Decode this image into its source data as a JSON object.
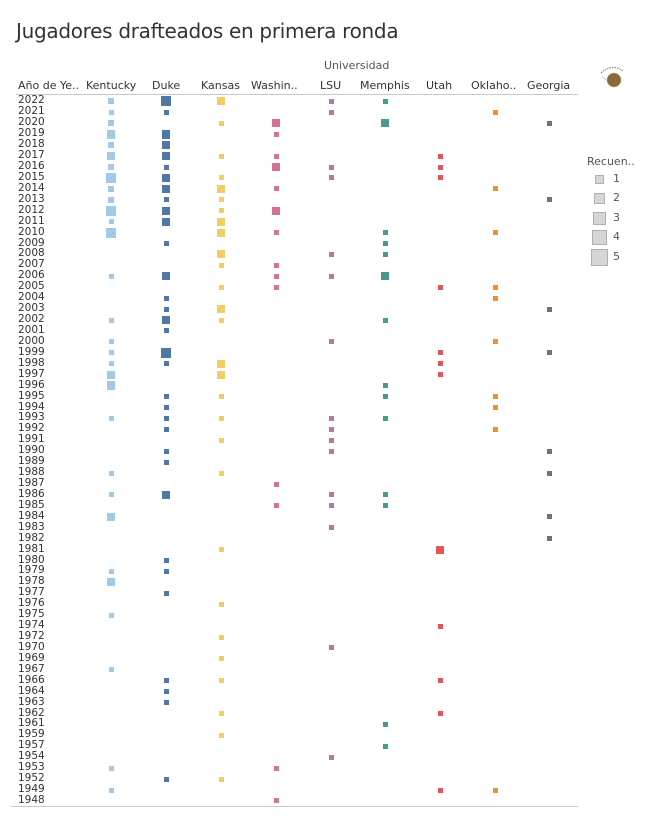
{
  "title": "Jugadores drafteados en primera ronda",
  "group_header": "Universidad",
  "row_header": "Año de Ye..",
  "legend": {
    "title": "Recuen..",
    "items": [
      {
        "label": "1",
        "value": 1
      },
      {
        "label": "2",
        "value": 2
      },
      {
        "label": "3",
        "value": 3
      },
      {
        "label": "4",
        "value": 4
      },
      {
        "label": "5",
        "value": 5
      }
    ]
  },
  "logo": {
    "icon": "basketball-logo-icon"
  },
  "chart_data": {
    "type": "heatmap",
    "title": "Jugadores drafteados en primera ronda",
    "xlabel": "Universidad",
    "ylabel": "Año de Ye..",
    "size_legend": "Recuen..",
    "size_range": [
      1,
      5
    ],
    "legend_position": "right",
    "columns": [
      {
        "name": "Kentucky",
        "label": "Kentucky",
        "color": "#a0cbe8"
      },
      {
        "name": "Duke",
        "label": "Duke",
        "color": "#4e79a7"
      },
      {
        "name": "Kansas",
        "label": "Kansas",
        "color": "#f1ce63"
      },
      {
        "name": "Washington",
        "label": "Washin..",
        "color": "#d37295"
      },
      {
        "name": "LSU",
        "label": "LSU",
        "color": "#b07aa1"
      },
      {
        "name": "Memphis",
        "label": "Memphis",
        "color": "#499894"
      },
      {
        "name": "Utah",
        "label": "Utah",
        "color": "#e15759"
      },
      {
        "name": "Oklahoma",
        "label": "Oklaho..",
        "color": "#f28e2b"
      },
      {
        "name": "Georgia",
        "label": "Georgia",
        "color": "#79706e"
      }
    ],
    "rows": [
      {
        "year": "2022",
        "values": [
          2,
          5,
          3,
          0,
          1,
          1,
          0,
          0,
          0
        ]
      },
      {
        "year": "2021",
        "values": [
          1,
          1,
          0,
          0,
          1,
          0,
          0,
          1,
          0
        ]
      },
      {
        "year": "2020",
        "values": [
          2,
          0,
          1,
          3,
          0,
          3,
          0,
          0,
          1
        ]
      },
      {
        "year": "2019",
        "values": [
          4,
          4,
          0,
          1,
          0,
          0,
          0,
          0,
          0
        ]
      },
      {
        "year": "2018",
        "values": [
          2,
          4,
          0,
          0,
          0,
          0,
          0,
          0,
          0
        ]
      },
      {
        "year": "2017",
        "values": [
          4,
          4,
          1,
          1,
          0,
          0,
          1,
          0,
          0
        ]
      },
      {
        "year": "2016",
        "values": [
          2,
          1,
          0,
          3,
          1,
          0,
          1,
          0,
          0
        ]
      },
      {
        "year": "2015",
        "values": [
          5,
          4,
          1,
          0,
          1,
          0,
          1,
          0,
          0
        ]
      },
      {
        "year": "2014",
        "values": [
          2,
          3,
          3,
          1,
          0,
          0,
          0,
          1,
          0
        ]
      },
      {
        "year": "2013",
        "values": [
          2,
          1,
          1,
          0,
          0,
          0,
          0,
          0,
          1
        ]
      },
      {
        "year": "2012",
        "values": [
          5,
          3,
          1,
          3,
          0,
          0,
          0,
          0,
          0
        ]
      },
      {
        "year": "2011",
        "values": [
          1,
          3,
          3,
          0,
          0,
          0,
          0,
          0,
          0
        ]
      },
      {
        "year": "2010",
        "values": [
          5,
          0,
          3,
          1,
          0,
          1,
          0,
          1,
          0
        ]
      },
      {
        "year": "2009",
        "values": [
          0,
          1,
          0,
          0,
          0,
          1,
          0,
          0,
          0
        ]
      },
      {
        "year": "2008",
        "values": [
          0,
          0,
          3,
          0,
          1,
          1,
          0,
          0,
          0
        ]
      },
      {
        "year": "2007",
        "values": [
          0,
          0,
          1,
          1,
          0,
          0,
          0,
          0,
          0
        ]
      },
      {
        "year": "2006",
        "values": [
          1,
          3,
          0,
          1,
          1,
          3,
          0,
          0,
          0
        ]
      },
      {
        "year": "2005",
        "values": [
          0,
          0,
          1,
          1,
          0,
          0,
          1,
          1,
          0
        ]
      },
      {
        "year": "2004",
        "values": [
          0,
          1,
          0,
          0,
          0,
          0,
          0,
          1,
          0
        ]
      },
      {
        "year": "2003",
        "values": [
          0,
          1,
          3,
          0,
          0,
          0,
          0,
          0,
          1
        ]
      },
      {
        "year": "2002",
        "values": [
          1,
          3,
          1,
          0,
          0,
          1,
          0,
          0,
          0
        ]
      },
      {
        "year": "2001",
        "values": [
          0,
          1,
          0,
          0,
          0,
          0,
          0,
          0,
          0
        ]
      },
      {
        "year": "2000",
        "values": [
          1,
          0,
          0,
          0,
          1,
          0,
          0,
          1,
          0
        ]
      },
      {
        "year": "1999",
        "values": [
          1,
          5,
          0,
          0,
          0,
          0,
          1,
          0,
          1
        ]
      },
      {
        "year": "1998",
        "values": [
          1,
          1,
          3,
          0,
          0,
          0,
          1,
          0,
          0
        ]
      },
      {
        "year": "1997",
        "values": [
          3,
          0,
          3,
          0,
          0,
          0,
          1,
          0,
          0
        ]
      },
      {
        "year": "1996",
        "values": [
          4,
          0,
          0,
          0,
          0,
          1,
          0,
          0,
          0
        ]
      },
      {
        "year": "1995",
        "values": [
          0,
          1,
          1,
          0,
          0,
          1,
          0,
          1,
          0
        ]
      },
      {
        "year": "1994",
        "values": [
          0,
          1,
          0,
          0,
          0,
          0,
          0,
          1,
          0
        ]
      },
      {
        "year": "1993",
        "values": [
          1,
          1,
          1,
          0,
          1,
          1,
          0,
          0,
          0
        ]
      },
      {
        "year": "1992",
        "values": [
          0,
          1,
          0,
          0,
          1,
          0,
          0,
          1,
          0
        ]
      },
      {
        "year": "1991",
        "values": [
          0,
          0,
          1,
          0,
          1,
          0,
          0,
          0,
          0
        ]
      },
      {
        "year": "1990",
        "values": [
          0,
          1,
          0,
          0,
          1,
          0,
          0,
          0,
          1
        ]
      },
      {
        "year": "1989",
        "values": [
          0,
          1,
          0,
          0,
          0,
          0,
          0,
          0,
          0
        ]
      },
      {
        "year": "1988",
        "values": [
          1,
          0,
          1,
          0,
          0,
          0,
          0,
          0,
          1
        ]
      },
      {
        "year": "1987",
        "values": [
          0,
          0,
          0,
          1,
          0,
          0,
          0,
          0,
          0
        ]
      },
      {
        "year": "1986",
        "values": [
          1,
          3,
          0,
          0,
          1,
          1,
          0,
          0,
          0
        ]
      },
      {
        "year": "1985",
        "values": [
          0,
          0,
          0,
          1,
          1,
          1,
          0,
          0,
          0
        ]
      },
      {
        "year": "1984",
        "values": [
          3,
          0,
          0,
          0,
          0,
          0,
          0,
          0,
          1
        ]
      },
      {
        "year": "1983",
        "values": [
          0,
          0,
          0,
          0,
          1,
          0,
          0,
          0,
          0
        ]
      },
      {
        "year": "1982",
        "values": [
          0,
          0,
          0,
          0,
          0,
          0,
          0,
          0,
          1
        ]
      },
      {
        "year": "1981",
        "values": [
          0,
          0,
          1,
          0,
          0,
          0,
          3,
          0,
          0
        ]
      },
      {
        "year": "1980",
        "values": [
          0,
          1,
          0,
          0,
          0,
          0,
          0,
          0,
          0
        ]
      },
      {
        "year": "1979",
        "values": [
          1,
          1,
          0,
          0,
          0,
          0,
          0,
          0,
          0
        ]
      },
      {
        "year": "1978",
        "values": [
          3,
          0,
          0,
          0,
          0,
          0,
          0,
          0,
          0
        ]
      },
      {
        "year": "1977",
        "values": [
          0,
          1,
          0,
          0,
          0,
          0,
          0,
          0,
          0
        ]
      },
      {
        "year": "1976",
        "values": [
          0,
          0,
          1,
          0,
          0,
          0,
          0,
          0,
          0
        ]
      },
      {
        "year": "1975",
        "values": [
          1,
          0,
          0,
          0,
          0,
          0,
          0,
          0,
          0
        ]
      },
      {
        "year": "1974",
        "values": [
          0,
          0,
          0,
          0,
          0,
          0,
          1,
          0,
          0
        ]
      },
      {
        "year": "1972",
        "values": [
          0,
          0,
          1,
          0,
          0,
          0,
          0,
          0,
          0
        ]
      },
      {
        "year": "1970",
        "values": [
          0,
          0,
          0,
          0,
          1,
          0,
          0,
          0,
          0
        ]
      },
      {
        "year": "1969",
        "values": [
          0,
          0,
          1,
          0,
          0,
          0,
          0,
          0,
          0
        ]
      },
      {
        "year": "1967",
        "values": [
          1,
          0,
          0,
          0,
          0,
          0,
          0,
          0,
          0
        ]
      },
      {
        "year": "1966",
        "values": [
          0,
          1,
          1,
          0,
          0,
          0,
          1,
          0,
          0
        ]
      },
      {
        "year": "1964",
        "values": [
          0,
          1,
          0,
          0,
          0,
          0,
          0,
          0,
          0
        ]
      },
      {
        "year": "1963",
        "values": [
          0,
          1,
          0,
          0,
          0,
          0,
          0,
          0,
          0
        ]
      },
      {
        "year": "1962",
        "values": [
          0,
          0,
          1,
          0,
          0,
          0,
          1,
          0,
          0
        ]
      },
      {
        "year": "1961",
        "values": [
          0,
          0,
          0,
          0,
          0,
          1,
          0,
          0,
          0
        ]
      },
      {
        "year": "1959",
        "values": [
          0,
          0,
          1,
          0,
          0,
          0,
          0,
          0,
          0
        ]
      },
      {
        "year": "1957",
        "values": [
          0,
          0,
          0,
          0,
          0,
          1,
          0,
          0,
          0
        ]
      },
      {
        "year": "1954",
        "values": [
          0,
          0,
          0,
          0,
          1,
          0,
          0,
          0,
          0
        ]
      },
      {
        "year": "1953",
        "values": [
          1,
          0,
          0,
          1,
          0,
          0,
          0,
          0,
          0
        ]
      },
      {
        "year": "1952",
        "values": [
          0,
          1,
          1,
          0,
          0,
          0,
          0,
          0,
          0
        ]
      },
      {
        "year": "1949",
        "values": [
          1,
          0,
          0,
          0,
          0,
          0,
          1,
          1,
          0
        ]
      },
      {
        "year": "1948",
        "values": [
          0,
          0,
          0,
          1,
          0,
          0,
          0,
          0,
          0
        ]
      }
    ]
  }
}
